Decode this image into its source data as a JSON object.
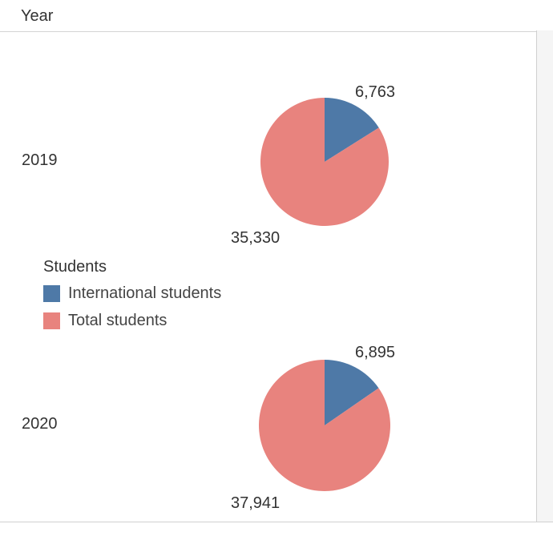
{
  "header": {
    "title": "Year"
  },
  "legend": {
    "title": "Students",
    "items": [
      {
        "label": "International students",
        "color": "#4e79a7"
      },
      {
        "label": "Total students",
        "color": "#e8837e"
      }
    ]
  },
  "rows": [
    {
      "label": "2019"
    },
    {
      "label": "2020"
    }
  ],
  "chart_data": [
    {
      "type": "pie",
      "category": "2019",
      "slices": [
        {
          "name": "International students",
          "value": 6763,
          "label": "6,763",
          "color": "#4e79a7"
        },
        {
          "name": "Total students",
          "value": 35330,
          "label": "35,330",
          "color": "#e8837e"
        }
      ]
    },
    {
      "type": "pie",
      "category": "2020",
      "slices": [
        {
          "name": "International students",
          "value": 6895,
          "label": "6,895",
          "color": "#4e79a7"
        },
        {
          "name": "Total students",
          "value": 37941,
          "label": "37,941",
          "color": "#e8837e"
        }
      ]
    }
  ]
}
